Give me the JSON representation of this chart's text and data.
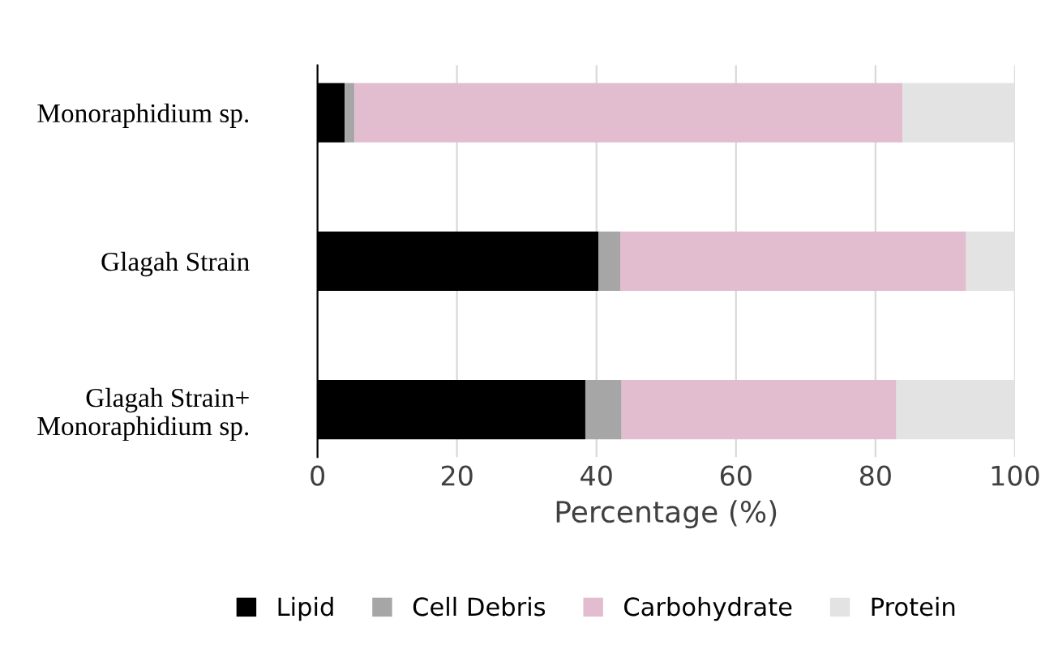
{
  "chart_data": {
    "type": "bar",
    "orientation": "horizontal",
    "stacked": true,
    "xlabel": "Percentage (%)",
    "categories": [
      "Monoraphidium sp.",
      "Glagah Strain",
      "Glagah Strain+\nMonoraphidium sp."
    ],
    "series": [
      {
        "name": "Lipid",
        "color": "#000000",
        "values": [
          3.9,
          40.3,
          38.4
        ]
      },
      {
        "name": "Cell Debris",
        "color": "#a6a6a6",
        "values": [
          1.4,
          3.1,
          5.2
        ]
      },
      {
        "name": "Carbohydrate",
        "color": "#e2bccf",
        "values": [
          78.6,
          49.6,
          39.4
        ]
      },
      {
        "name": "Protein",
        "color": "#e3e3e3",
        "values": [
          16.1,
          7.0,
          17.0
        ]
      }
    ],
    "xlim": [
      0,
      100
    ],
    "xticks": [
      0,
      20,
      40,
      60,
      80,
      100
    ],
    "grid": "x",
    "legend": "bottom"
  }
}
